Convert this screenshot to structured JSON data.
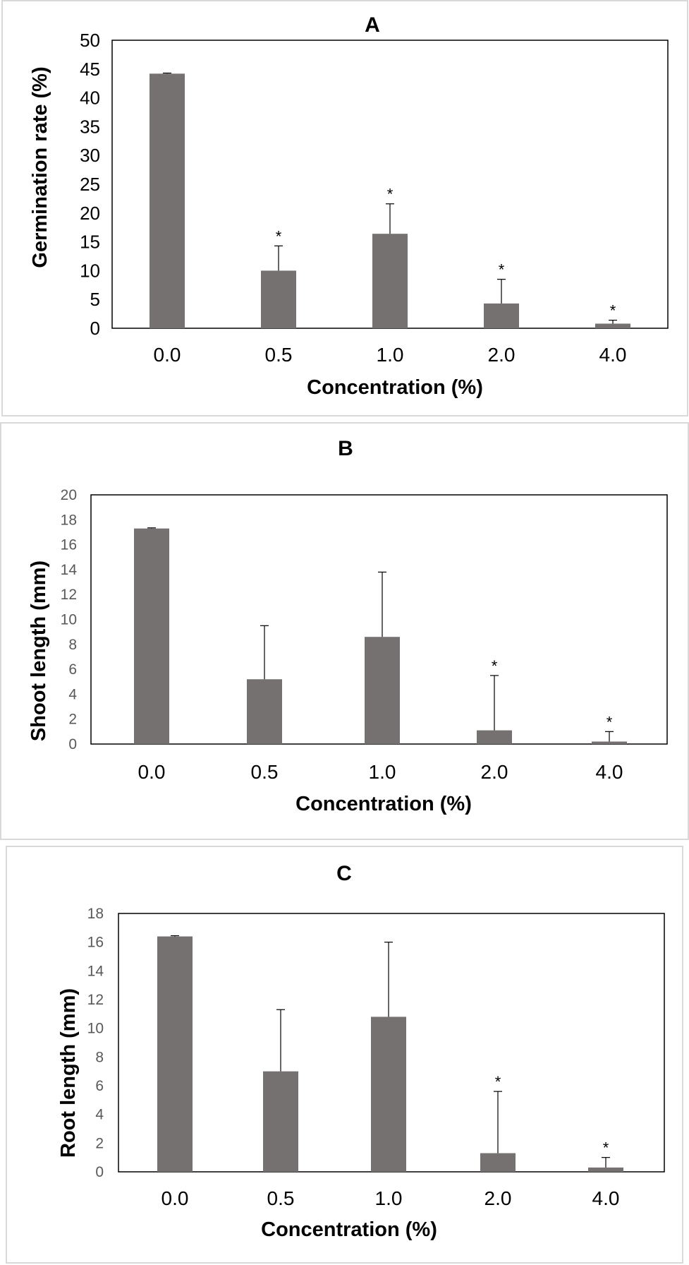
{
  "chart_data": [
    {
      "type": "bar",
      "title": "A",
      "xlabel": "Concentration (%)",
      "ylabel": "Germination rate (%)",
      "categories": [
        "0.0",
        "0.5",
        "1.0",
        "2.0",
        "4.0"
      ],
      "values": [
        44.2,
        10.0,
        16.4,
        4.3,
        0.8
      ],
      "error_plus": [
        0.1,
        4.3,
        5.2,
        4.2,
        0.6
      ],
      "significance": [
        "",
        "*",
        "*",
        "*",
        "*"
      ],
      "ylim": [
        0,
        50
      ],
      "yticks": [
        "0",
        "5",
        "10",
        "15",
        "20",
        "25",
        "30",
        "35",
        "40",
        "45",
        "50"
      ],
      "bar_color": "#767171",
      "grid": false
    },
    {
      "type": "bar",
      "title": "B",
      "xlabel": "Concentration (%)",
      "ylabel": "Shoot length (mm)",
      "categories": [
        "0.0",
        "0.5",
        "1.0",
        "2.0",
        "4.0"
      ],
      "values": [
        17.3,
        5.2,
        8.6,
        1.1,
        0.2
      ],
      "error_plus": [
        0.05,
        4.3,
        5.2,
        4.4,
        0.8
      ],
      "significance": [
        "",
        "",
        "",
        "*",
        "*"
      ],
      "ylim": [
        0,
        20
      ],
      "yticks": [
        "0",
        "2",
        "4",
        "6",
        "8",
        "10",
        "12",
        "14",
        "16",
        "18",
        "20"
      ],
      "bar_color": "#767171",
      "grid": false
    },
    {
      "type": "bar",
      "title": "C",
      "xlabel": "Concentration (%)",
      "ylabel": "Root length (mm)",
      "categories": [
        "0.0",
        "0.5",
        "1.0",
        "2.0",
        "4.0"
      ],
      "values": [
        16.4,
        7.0,
        10.8,
        1.3,
        0.3
      ],
      "error_plus": [
        0.05,
        4.3,
        5.2,
        4.3,
        0.7
      ],
      "significance": [
        "",
        "",
        "",
        "*",
        "*"
      ],
      "ylim": [
        0,
        18
      ],
      "yticks": [
        "0",
        "2",
        "4",
        "6",
        "8",
        "10",
        "12",
        "14",
        "16",
        "18"
      ],
      "bar_color": "#767171",
      "grid": false
    }
  ]
}
